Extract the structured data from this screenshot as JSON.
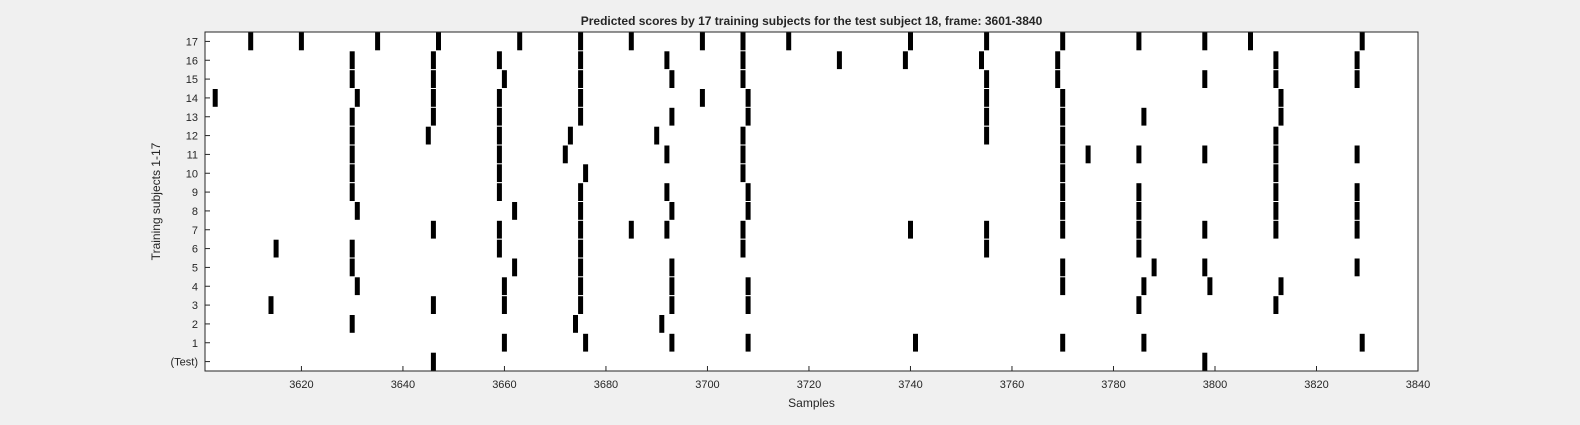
{
  "chart_data": {
    "type": "raster",
    "title": "Predicted scores by 17 training subjects for the test subject 18, frame: 3601-3840",
    "xlabel": "Samples",
    "ylabel": "Training subjects 1-17",
    "xlim": [
      3601,
      3840
    ],
    "x_ticks": [
      3620,
      3640,
      3660,
      3680,
      3700,
      3720,
      3740,
      3760,
      3780,
      3800,
      3820,
      3840
    ],
    "y_ticks": [
      "(Test)",
      "1",
      "2",
      "3",
      "4",
      "5",
      "6",
      "7",
      "8",
      "9",
      "10",
      "11",
      "12",
      "13",
      "14",
      "15",
      "16",
      "17"
    ],
    "grid": false,
    "colors": {
      "mark": "#000000",
      "plot_background": "#ffffff",
      "figure_background": "#f0f0f0"
    },
    "series": [
      {
        "row": "(Test)",
        "events": [
          3646,
          3798
        ]
      },
      {
        "row": "1",
        "events": [
          3660,
          3676,
          3693,
          3708,
          3741,
          3770,
          3786,
          3829
        ]
      },
      {
        "row": "2",
        "events": [
          3630,
          3674,
          3691
        ]
      },
      {
        "row": "3",
        "events": [
          3614,
          3646,
          3660,
          3675,
          3693,
          3708,
          3785,
          3812
        ]
      },
      {
        "row": "4",
        "events": [
          3631,
          3660,
          3675,
          3693,
          3708,
          3770,
          3786,
          3799,
          3813
        ]
      },
      {
        "row": "5",
        "events": [
          3630,
          3662,
          3675,
          3693,
          3770,
          3788,
          3798,
          3828
        ]
      },
      {
        "row": "6",
        "events": [
          3615,
          3630,
          3659,
          3675,
          3707,
          3755,
          3785
        ]
      },
      {
        "row": "7",
        "events": [
          3646,
          3659,
          3675,
          3685,
          3692,
          3707,
          3740,
          3755,
          3770,
          3785,
          3798,
          3812,
          3828
        ]
      },
      {
        "row": "8",
        "events": [
          3631,
          3662,
          3675,
          3693,
          3708,
          3770,
          3785,
          3812,
          3828
        ]
      },
      {
        "row": "9",
        "events": [
          3630,
          3659,
          3675,
          3692,
          3708,
          3770,
          3785,
          3812,
          3828
        ]
      },
      {
        "row": "10",
        "events": [
          3630,
          3659,
          3676,
          3707,
          3770,
          3812
        ]
      },
      {
        "row": "11",
        "events": [
          3630,
          3659,
          3672,
          3692,
          3707,
          3770,
          3775,
          3785,
          3798,
          3812,
          3828
        ]
      },
      {
        "row": "12",
        "events": [
          3630,
          3645,
          3659,
          3673,
          3690,
          3707,
          3755,
          3770,
          3812
        ]
      },
      {
        "row": "13",
        "events": [
          3630,
          3646,
          3659,
          3675,
          3693,
          3708,
          3755,
          3770,
          3786,
          3813
        ]
      },
      {
        "row": "14",
        "events": [
          3603,
          3631,
          3646,
          3659,
          3675,
          3699,
          3708,
          3755,
          3770,
          3813
        ]
      },
      {
        "row": "15",
        "events": [
          3630,
          3646,
          3660,
          3675,
          3693,
          3707,
          3755,
          3769,
          3798,
          3812,
          3828
        ]
      },
      {
        "row": "16",
        "events": [
          3630,
          3646,
          3659,
          3675,
          3692,
          3707,
          3726,
          3739,
          3754,
          3769,
          3812,
          3828
        ]
      },
      {
        "row": "17",
        "events": [
          3610,
          3620,
          3635,
          3647,
          3663,
          3675,
          3685,
          3699,
          3707,
          3716,
          3740,
          3755,
          3770,
          3785,
          3798,
          3807,
          3829
        ]
      }
    ]
  }
}
